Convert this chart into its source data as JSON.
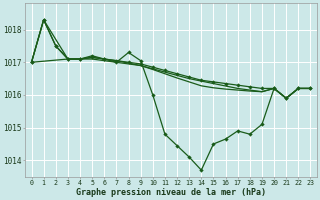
{
  "xlabel": "Graphe pression niveau de la mer (hPa)",
  "background_color": "#cce8e8",
  "grid_color": "#ffffff",
  "line_color": "#1a5c1a",
  "xlim": [
    -0.5,
    23.5
  ],
  "ylim": [
    1013.5,
    1018.8
  ],
  "yticks": [
    1014,
    1015,
    1016,
    1017,
    1018
  ],
  "xticks": [
    0,
    1,
    2,
    3,
    4,
    5,
    6,
    7,
    8,
    9,
    10,
    11,
    12,
    13,
    14,
    15,
    16,
    17,
    18,
    19,
    20,
    21,
    22,
    23
  ],
  "series1": [
    [
      0,
      1017.0
    ],
    [
      1,
      1018.3
    ],
    [
      2,
      1017.5
    ],
    [
      3,
      1017.1
    ],
    [
      4,
      1017.1
    ],
    [
      5,
      1017.2
    ],
    [
      6,
      1017.1
    ],
    [
      7,
      1017.0
    ],
    [
      8,
      1017.3
    ],
    [
      9,
      1017.05
    ],
    [
      10,
      1016.0
    ],
    [
      11,
      1014.8
    ],
    [
      12,
      1014.45
    ],
    [
      13,
      1014.1
    ],
    [
      14,
      1013.7
    ],
    [
      15,
      1014.5
    ],
    [
      16,
      1014.65
    ],
    [
      17,
      1014.9
    ],
    [
      18,
      1014.8
    ],
    [
      19,
      1015.1
    ],
    [
      20,
      1016.2
    ],
    [
      21,
      1015.9
    ],
    [
      22,
      1016.2
    ],
    [
      23,
      1016.2
    ]
  ],
  "series2": [
    [
      0,
      1017.0
    ],
    [
      1,
      1018.3
    ],
    [
      2,
      1017.5
    ],
    [
      3,
      1017.1
    ],
    [
      4,
      1017.1
    ],
    [
      5,
      1017.15
    ],
    [
      6,
      1017.1
    ],
    [
      7,
      1017.05
    ],
    [
      8,
      1017.0
    ],
    [
      9,
      1016.95
    ],
    [
      10,
      1016.85
    ],
    [
      11,
      1016.75
    ],
    [
      12,
      1016.65
    ],
    [
      13,
      1016.55
    ],
    [
      14,
      1016.45
    ],
    [
      15,
      1016.4
    ],
    [
      16,
      1016.35
    ],
    [
      17,
      1016.3
    ],
    [
      18,
      1016.25
    ],
    [
      19,
      1016.2
    ],
    [
      20,
      1016.2
    ],
    [
      21,
      1015.9
    ],
    [
      22,
      1016.2
    ],
    [
      23,
      1016.2
    ]
  ],
  "series3": [
    [
      0,
      1017.0
    ],
    [
      1,
      1018.3
    ],
    [
      3,
      1017.1
    ],
    [
      4,
      1017.1
    ],
    [
      5,
      1017.15
    ],
    [
      6,
      1017.1
    ],
    [
      7,
      1017.05
    ],
    [
      9,
      1016.9
    ],
    [
      10,
      1016.78
    ],
    [
      11,
      1016.65
    ],
    [
      12,
      1016.52
    ],
    [
      13,
      1016.4
    ],
    [
      14,
      1016.28
    ],
    [
      15,
      1016.22
    ],
    [
      16,
      1016.18
    ],
    [
      17,
      1016.15
    ],
    [
      18,
      1016.12
    ],
    [
      19,
      1016.1
    ],
    [
      20,
      1016.2
    ],
    [
      21,
      1015.9
    ],
    [
      22,
      1016.2
    ],
    [
      23,
      1016.2
    ]
  ],
  "series4": [
    [
      0,
      1017.0
    ],
    [
      3,
      1017.1
    ],
    [
      5,
      1017.1
    ],
    [
      7,
      1017.0
    ],
    [
      9,
      1016.9
    ],
    [
      11,
      1016.7
    ],
    [
      13,
      1016.5
    ],
    [
      15,
      1016.35
    ],
    [
      17,
      1016.2
    ],
    [
      19,
      1016.1
    ],
    [
      20,
      1016.2
    ],
    [
      21,
      1015.9
    ],
    [
      22,
      1016.2
    ],
    [
      23,
      1016.2
    ]
  ]
}
